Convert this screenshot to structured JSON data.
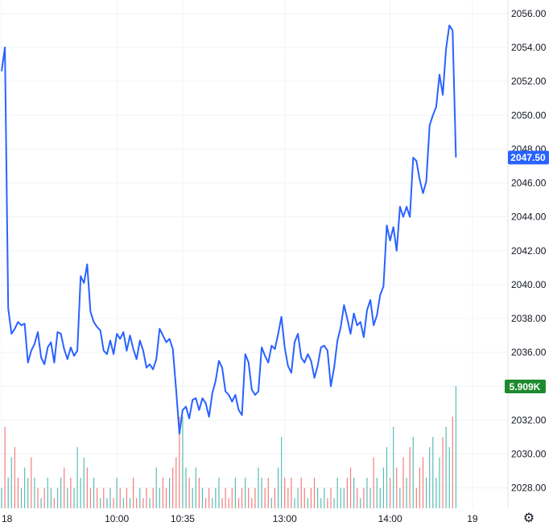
{
  "chart_data": {
    "type": "line",
    "title": "",
    "xlabel": "",
    "ylabel": "",
    "ylim": [
      2026.8,
      2056.8
    ],
    "y_ticks": [
      "2056.00",
      "2054.00",
      "2052.00",
      "2050.00",
      "2048.00",
      "2046.00",
      "2044.00",
      "2042.00",
      "2040.00",
      "2038.00",
      "2036.00",
      "2034.00",
      "2032.00",
      "2030.00",
      "2028.00"
    ],
    "y_tick_values": [
      2056,
      2054,
      2052,
      2050,
      2048,
      2046,
      2044,
      2042,
      2040,
      2038,
      2036,
      2034,
      2032,
      2030,
      2028
    ],
    "x_ticks": [
      "18",
      "10:00",
      "10:35",
      "13:00",
      "14:00",
      "19"
    ],
    "x_tick_index": [
      0,
      35,
      55,
      86,
      118,
      143
    ],
    "colors": {
      "line": "#2962ff",
      "up_volume": "#26a69a",
      "down_volume": "#ef5350",
      "volume_badge": "#1e8a2e",
      "grid": "#f0f3fa"
    },
    "last_price_label": "2047.50",
    "last_volume_label": "5.909K",
    "series": [
      {
        "values": [
          2052.6,
          2054.0,
          2038.6,
          2037.1,
          2037.4,
          2037.8,
          2037.6,
          2037.7,
          2035.4,
          2036.1,
          2036.5,
          2037.2,
          2035.7,
          2035.3,
          2036.3,
          2036.6,
          2035.4,
          2037.2,
          2037.1,
          2036.2,
          2035.6,
          2036.3,
          2035.8,
          2036.1,
          2040.5,
          2040.1,
          2041.2,
          2038.4,
          2037.8,
          2037.5,
          2037.3,
          2036.1,
          2035.9,
          2036.7,
          2035.9,
          2037.1,
          2036.8,
          2037.2,
          2036.1,
          2037.0,
          2036.2,
          2035.6,
          2036.7,
          2036.1,
          2035.1,
          2035.3,
          2035.0,
          2035.6,
          2037.4,
          2037.0,
          2036.6,
          2036.8,
          2036.2,
          2033.8,
          2031.2,
          2032.6,
          2032.8,
          2032.1,
          2033.2,
          2033.3,
          2032.6,
          2033.3,
          2033.0,
          2032.2,
          2033.6,
          2034.3,
          2035.5,
          2035.1,
          2033.7,
          2033.5,
          2033.1,
          2033.5,
          2032.6,
          2032.3,
          2035.9,
          2035.4,
          2033.8,
          2033.5,
          2033.7,
          2036.3,
          2035.8,
          2035.4,
          2036.4,
          2036.2,
          2037.1,
          2038.1,
          2036.3,
          2035.2,
          2034.8,
          2036.6,
          2037.1,
          2035.7,
          2035.4,
          2035.9,
          2035.5,
          2034.5,
          2035.2,
          2036.3,
          2036.4,
          2036.1,
          2034.0,
          2035.1,
          2036.7,
          2037.5,
          2038.8,
          2038.0,
          2037.1,
          2038.3,
          2037.6,
          2037.8,
          2036.9,
          2038.5,
          2039.1,
          2037.6,
          2038.2,
          2039.4,
          2039.9,
          2043.5,
          2042.6,
          2043.4,
          2042.0,
          2044.6,
          2044.0,
          2044.6,
          2044.0,
          2047.5,
          2047.3,
          2046.2,
          2045.4,
          2046.1,
          2049.4,
          2050.0,
          2050.5,
          2052.4,
          2051.2,
          2053.9,
          2055.3,
          2055.0,
          2047.5
        ],
        "volume": [
          2,
          8,
          3,
          5,
          6,
          3,
          2,
          4,
          3,
          5,
          3,
          2,
          1,
          2,
          3,
          2,
          1,
          2,
          3,
          4,
          2,
          3,
          2,
          6,
          3,
          5,
          4,
          2,
          3,
          2,
          1,
          2,
          1,
          2,
          1,
          3,
          2,
          1,
          2,
          1,
          3,
          1,
          2,
          1,
          2,
          1,
          2,
          4,
          2,
          3,
          2,
          3,
          4,
          5,
          9,
          9,
          4,
          3,
          2,
          4,
          3,
          2,
          1,
          2,
          1,
          2,
          3,
          1,
          2,
          1,
          2,
          3,
          1,
          2,
          3,
          2,
          1,
          2,
          4,
          3,
          2,
          3,
          1,
          2,
          4,
          7,
          3,
          2,
          3,
          1,
          2,
          3,
          2,
          1,
          2,
          3,
          2,
          1,
          2,
          1,
          2,
          1,
          3,
          2,
          2,
          3,
          4,
          3,
          2,
          1,
          2,
          3,
          2,
          5,
          3,
          2,
          4,
          6,
          3,
          8,
          4,
          2,
          5,
          3,
          6,
          7,
          2,
          4,
          5,
          3,
          6,
          7,
          3,
          5,
          7,
          8,
          6,
          9,
          12
        ],
        "volume_up": [
          1,
          0,
          1,
          1,
          0,
          0,
          1,
          1,
          1,
          0,
          1,
          0,
          1,
          0,
          1,
          1,
          0,
          1,
          1,
          0,
          1,
          0,
          1,
          1,
          1,
          1,
          0,
          0,
          1,
          0,
          1,
          0,
          1,
          1,
          0,
          1,
          0,
          1,
          0,
          1,
          0,
          0,
          1,
          0,
          0,
          1,
          0,
          1,
          1,
          0,
          0,
          1,
          0,
          0,
          0,
          1,
          1,
          0,
          1,
          1,
          0,
          1,
          0,
          0,
          1,
          1,
          1,
          0,
          0,
          0,
          0,
          1,
          0,
          0,
          1,
          0,
          0,
          0,
          1,
          1,
          0,
          0,
          1,
          0,
          1,
          1,
          0,
          0,
          0,
          1,
          1,
          0,
          0,
          1,
          0,
          0,
          1,
          1,
          1,
          0,
          0,
          1,
          1,
          1,
          1,
          0,
          0,
          1,
          0,
          1,
          0,
          1,
          1,
          0,
          1,
          1,
          1,
          1,
          0,
          1,
          0,
          1,
          0,
          1,
          0,
          1,
          0,
          0,
          0,
          1,
          1,
          1,
          1,
          1,
          0,
          1,
          1,
          0,
          1
        ]
      }
    ]
  }
}
